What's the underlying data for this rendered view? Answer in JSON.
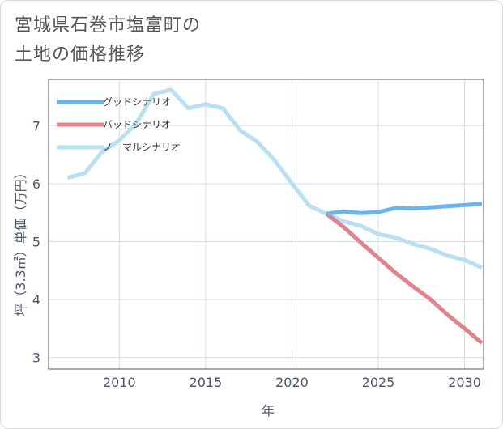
{
  "title_lines": [
    "宮城県石巻市塩富町の",
    "土地の価格推移"
  ],
  "chart_data": {
    "type": "line",
    "xlabel": "年",
    "ylabel": "坪（3.3㎡）単価（万円）",
    "xlim": [
      2005.9,
      2031.1
    ],
    "ylim": [
      2.8,
      7.8
    ],
    "xticks": [
      2010,
      2015,
      2020,
      2025,
      2030
    ],
    "yticks": [
      3,
      4,
      5,
      6,
      7
    ],
    "grid": true,
    "legend_position": "top-left",
    "series": [
      {
        "name": "グッドシナリオ",
        "color": "#6bb5ee",
        "x": [
          2022,
          2023,
          2024,
          2025,
          2026,
          2027,
          2028,
          2029,
          2030,
          2031
        ],
        "values": [
          5.48,
          5.52,
          5.49,
          5.51,
          5.58,
          5.57,
          5.59,
          5.61,
          5.63,
          5.65
        ]
      },
      {
        "name": "バッドシナリオ",
        "color": "#e0838d",
        "x": [
          2022,
          2023,
          2024,
          2025,
          2026,
          2027,
          2028,
          2029,
          2030,
          2031
        ],
        "values": [
          5.48,
          5.25,
          4.98,
          4.72,
          4.46,
          4.23,
          4.01,
          3.74,
          3.5,
          3.25
        ]
      },
      {
        "name": "ノーマルシナリオ",
        "color": "#b9e0f0",
        "x": [
          2007,
          2008,
          2009,
          2010,
          2011,
          2012,
          2013,
          2014,
          2015,
          2016,
          2017,
          2018,
          2019,
          2020,
          2021,
          2022,
          2023,
          2024,
          2025,
          2026,
          2027,
          2028,
          2029,
          2030,
          2031
        ],
        "values": [
          6.1,
          6.18,
          6.55,
          6.75,
          7.05,
          7.55,
          7.62,
          7.3,
          7.37,
          7.3,
          6.92,
          6.72,
          6.4,
          6.0,
          5.62,
          5.48,
          5.35,
          5.27,
          5.13,
          5.07,
          4.96,
          4.88,
          4.76,
          4.68,
          4.55
        ]
      }
    ]
  }
}
